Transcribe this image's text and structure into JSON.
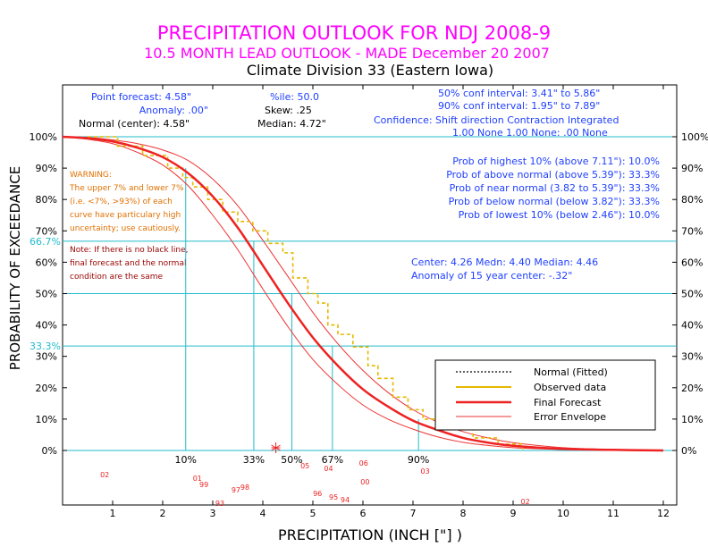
{
  "colors": {
    "title": "#ff00ff",
    "stat_blue": "#1f3fff",
    "cyan": "#22bbcc",
    "observed": "#e6b800",
    "forecast": "#ee2222",
    "envelope": "#ee3333",
    "warning": "#e07000",
    "note": "#990000",
    "year_label": "#ee2222",
    "ink": "#000000"
  },
  "header": {
    "title": "PRECIPITATION OUTLOOK FOR NDJ 2008-9",
    "subtitle": "10.5 MONTH LEAD OUTLOOK  - MADE December 20 2007",
    "division": "Climate Division 33 (Eastern Iowa)"
  },
  "stats": {
    "point_forecast": "Point forecast: 4.58\"",
    "anomaly": "Anomaly: .00\"",
    "normal_center": "Normal (center): 4.58\"",
    "pctile": "%ile: 50.0",
    "skew": "Skew: .25",
    "median": "Median: 4.72\"",
    "conf50": "50% conf interval: 3.41\" to 5.86\"",
    "conf90": "90% conf interval: 1.95\" to 7.89\"",
    "confidence_header": "Confidence: Shift direction  Contraction  Integrated",
    "confidence_values": "1.00 None     1.00 None:    .00 None",
    "prob_highest": "Prob of highest 10% (above 7.11\"): 10.0%",
    "prob_above": "Prob of above normal (above 5.39\"): 33.3%",
    "prob_near": "Prob of near normal (3.82 to 5.39\"): 33.3%",
    "prob_below": "Prob of below normal (below 3.82\"): 33.3%",
    "prob_lowest": "Prob of lowest 10% (below 2.46\"): 10.0%",
    "center_line": "Center: 4.26 Medn: 4.40 Median: 4.46",
    "anomaly15": "Anomaly of 15 year center: -.32\""
  },
  "warning": {
    "lines": [
      "WARNING:",
      "The upper 7% and lower 7%",
      "(i.e. <7%, >93%) of each",
      "curve have particulary high",
      "uncertainty; use cautiously."
    ]
  },
  "note": {
    "lines": [
      "Note: If there is no black line,",
      "final forecast and the normal",
      "condition are the same"
    ]
  },
  "legend": {
    "normal": "Normal (Fitted)",
    "observed": "Observed data",
    "forecast": "Final Forecast",
    "envelope": "Error Envelope"
  },
  "chart_data": {
    "type": "line",
    "title": "PRECIPITATION OUTLOOK FOR NDJ 2008-9",
    "xlabel": "PRECIPITATION (INCH [\"] )",
    "ylabel": "PROBABILITY OF EXCEEDANCE",
    "xlim": [
      0,
      12.3
    ],
    "ylim": [
      0,
      100
    ],
    "x_ticks": [
      "1",
      "2",
      "3",
      "4",
      "5",
      "6",
      "7",
      "8",
      "9",
      "10",
      "11",
      "12"
    ],
    "y_ticks_left": [
      "0%",
      "10%",
      "20%",
      "30%",
      "40%",
      "50%",
      "60%",
      "70%",
      "80%",
      "90%",
      "100%"
    ],
    "y_ticks_right": [
      "0%",
      "10%",
      "20%",
      "30%",
      "40%",
      "50%",
      "60%",
      "70%",
      "80%",
      "90%",
      "100%"
    ],
    "ref_lines_y": [
      {
        "y": 66.7,
        "label": "66.7%"
      },
      {
        "y": 33.3,
        "label": "33.3%"
      }
    ],
    "percentile_markers": [
      {
        "label": "10%",
        "x": 2.46,
        "y": 90
      },
      {
        "label": "33%",
        "x": 3.82,
        "y": 66.7
      },
      {
        "label": "50%",
        "x": 4.58,
        "y": 50
      },
      {
        "label": "67%",
        "x": 5.39,
        "y": 33.3
      },
      {
        "label": "90%",
        "x": 7.11,
        "y": 10
      }
    ],
    "point_forecast_x": 4.26,
    "series": [
      {
        "name": "Final Forecast",
        "x": [
          0,
          0.5,
          1,
          1.5,
          2,
          2.5,
          3,
          3.5,
          4,
          4.5,
          5,
          5.5,
          6,
          6.5,
          7,
          7.5,
          8,
          8.5,
          9,
          10,
          11,
          12
        ],
        "y": [
          100,
          99.5,
          98.5,
          96.5,
          93.5,
          88.5,
          81,
          71,
          59,
          47,
          36,
          27,
          19.5,
          14,
          9.5,
          6.5,
          4,
          2.5,
          1.5,
          0.5,
          0.2,
          0
        ]
      },
      {
        "name": "Error Envelope (upper)",
        "x": [
          0,
          0.5,
          1,
          1.5,
          2,
          2.5,
          3,
          3.5,
          4,
          4.5,
          5,
          5.5,
          6,
          6.5,
          7,
          7.5,
          8,
          8.5,
          9,
          10,
          11,
          12
        ],
        "y": [
          100,
          99.8,
          99,
          97.8,
          95.8,
          92.5,
          86.5,
          78,
          67,
          55.5,
          44,
          34,
          25.5,
          18.5,
          13,
          9,
          6,
          4,
          2.5,
          0.9,
          0.3,
          0
        ]
      },
      {
        "name": "Error Envelope (lower)",
        "x": [
          0,
          0.5,
          1,
          1.5,
          2,
          2.5,
          3,
          3.5,
          4,
          4.5,
          5,
          5.5,
          6,
          6.5,
          7,
          7.5,
          8,
          8.5,
          9,
          10,
          11,
          12
        ],
        "y": [
          100,
          99.2,
          97.8,
          95,
          91,
          84.5,
          75,
          64,
          51.5,
          39.5,
          29,
          21,
          14.5,
          10,
          6.8,
          4.3,
          2.6,
          1.6,
          0.9,
          0.3,
          0.1,
          0
        ]
      },
      {
        "name": "Observed data",
        "x": [
          0.5,
          1.1,
          1.6,
          2.1,
          2.4,
          2.6,
          2.9,
          3.2,
          3.5,
          3.8,
          4.1,
          4.4,
          4.6,
          4.9,
          5.1,
          5.3,
          5.5,
          5.8,
          6.1,
          6.3,
          6.6,
          6.9,
          7.2,
          7.7,
          8.2,
          8.7,
          9.2
        ],
        "y": [
          100,
          97,
          94,
          90,
          87,
          84,
          80,
          76,
          73,
          70,
          66,
          63,
          55,
          50,
          47,
          40,
          37,
          33,
          27,
          23,
          17,
          13,
          10,
          7,
          4,
          2,
          0
        ]
      }
    ],
    "year_labels": [
      {
        "label": "02",
        "x": -0.05,
        "yoff": 26
      },
      {
        "label": "01",
        "x": 1.8,
        "yoff": 30
      },
      {
        "label": "99",
        "x": 1.93,
        "yoff": 37
      },
      {
        "label": "93",
        "x": 2.25,
        "yoff": 58
      },
      {
        "label": "97",
        "x": 2.57,
        "yoff": 43
      },
      {
        "label": "98",
        "x": 2.75,
        "yoff": 40
      },
      {
        "label": "05",
        "x": 3.95,
        "yoff": 16
      },
      {
        "label": "04",
        "x": 4.42,
        "yoff": 19
      },
      {
        "label": "96",
        "x": 4.2,
        "yoff": 47
      },
      {
        "label": "95",
        "x": 4.52,
        "yoff": 51
      },
      {
        "label": "94",
        "x": 4.75,
        "yoff": 54
      },
      {
        "label": "06",
        "x": 5.12,
        "yoff": 13
      },
      {
        "label": "00",
        "x": 5.15,
        "yoff": 34
      },
      {
        "label": "03",
        "x": 6.35,
        "yoff": 22
      },
      {
        "label": "02",
        "x": 8.35,
        "yoff": 56
      }
    ]
  }
}
